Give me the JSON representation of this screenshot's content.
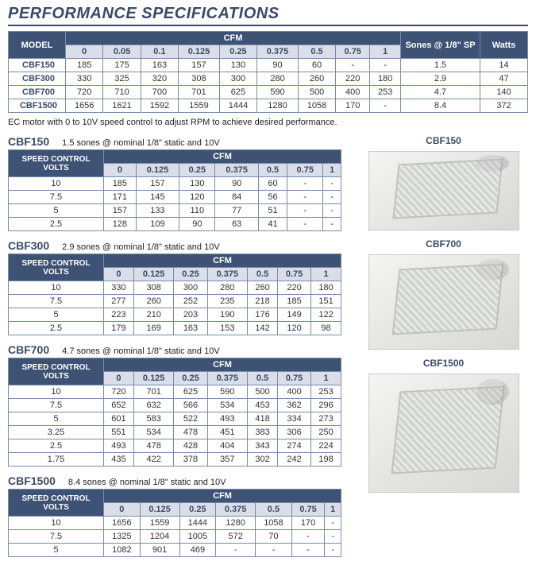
{
  "title": "PERFORMANCE SPECIFICATIONS",
  "note": "EC motor with 0 to 10V speed control to adjust RPM to achieve desired performance.",
  "main": {
    "headers": {
      "model": "MODEL",
      "cfm": "CFM",
      "sones": "Sones @ 1/8\" SP",
      "watts": "Watts"
    },
    "cfm_cols": [
      "0",
      "0.05",
      "0.1",
      "0.125",
      "0.25",
      "0.375",
      "0.5",
      "0.75",
      "1"
    ],
    "rows": [
      {
        "model": "CBF150",
        "vals": [
          "185",
          "175",
          "163",
          "157",
          "130",
          "90",
          "60",
          "-",
          "-"
        ],
        "sones": "1.5",
        "watts": "14"
      },
      {
        "model": "CBF300",
        "vals": [
          "330",
          "325",
          "320",
          "308",
          "300",
          "280",
          "260",
          "220",
          "180"
        ],
        "sones": "2.9",
        "watts": "47"
      },
      {
        "model": "CBF700",
        "vals": [
          "720",
          "710",
          "700",
          "701",
          "625",
          "590",
          "500",
          "400",
          "253"
        ],
        "sones": "4.7",
        "watts": "140"
      },
      {
        "model": "CBF1500",
        "vals": [
          "1656",
          "1621",
          "1592",
          "1559",
          "1444",
          "1280",
          "1058",
          "170",
          "-"
        ],
        "sones": "8.4",
        "watts": "372"
      }
    ]
  },
  "sub_cols": [
    "0",
    "0.125",
    "0.25",
    "0.375",
    "0.5",
    "0.75",
    "1"
  ],
  "sub_hdr": {
    "volts": "SPEED CONTROL VOLTS",
    "cfm": "CFM"
  },
  "subs": [
    {
      "model": "CBF150",
      "sub": "1.5 sones @ nominal 1/8\" static and 10V",
      "rows": [
        {
          "v": "10",
          "d": [
            "185",
            "157",
            "130",
            "90",
            "60",
            "-",
            "-"
          ]
        },
        {
          "v": "7.5",
          "d": [
            "171",
            "145",
            "120",
            "84",
            "56",
            "-",
            "-"
          ]
        },
        {
          "v": "5",
          "d": [
            "157",
            "133",
            "110",
            "77",
            "51",
            "-",
            "-"
          ]
        },
        {
          "v": "2.5",
          "d": [
            "128",
            "109",
            "90",
            "63",
            "41",
            "-",
            "-"
          ]
        }
      ]
    },
    {
      "model": "CBF300",
      "sub": "2.9 sones @ nominal 1/8\" static and 10V",
      "rows": [
        {
          "v": "10",
          "d": [
            "330",
            "308",
            "300",
            "280",
            "260",
            "220",
            "180"
          ]
        },
        {
          "v": "7.5",
          "d": [
            "277",
            "260",
            "252",
            "235",
            "218",
            "185",
            "151"
          ]
        },
        {
          "v": "5",
          "d": [
            "223",
            "210",
            "203",
            "190",
            "176",
            "149",
            "122"
          ]
        },
        {
          "v": "2.5",
          "d": [
            "179",
            "169",
            "163",
            "153",
            "142",
            "120",
            "98"
          ]
        }
      ]
    },
    {
      "model": "CBF700",
      "sub": "4.7 sones @ nominal 1/8\" static and 10V",
      "rows": [
        {
          "v": "10",
          "d": [
            "720",
            "701",
            "625",
            "590",
            "500",
            "400",
            "253"
          ]
        },
        {
          "v": "7.5",
          "d": [
            "652",
            "632",
            "566",
            "534",
            "453",
            "362",
            "296"
          ]
        },
        {
          "v": "5",
          "d": [
            "601",
            "583",
            "522",
            "493",
            "418",
            "334",
            "273"
          ]
        },
        {
          "v": "3.25",
          "d": [
            "551",
            "534",
            "478",
            "451",
            "383",
            "306",
            "250"
          ]
        },
        {
          "v": "2.5",
          "d": [
            "493",
            "478",
            "428",
            "404",
            "343",
            "274",
            "224"
          ]
        },
        {
          "v": "1.75",
          "d": [
            "435",
            "422",
            "378",
            "357",
            "302",
            "242",
            "198"
          ]
        }
      ]
    },
    {
      "model": "CBF1500",
      "sub": "8.4 sones @ nominal 1/8\" static and 10V",
      "rows": [
        {
          "v": "10",
          "d": [
            "1656",
            "1559",
            "1444",
            "1280",
            "1058",
            "170",
            "-"
          ]
        },
        {
          "v": "7.5",
          "d": [
            "1325",
            "1204",
            "1005",
            "572",
            "70",
            "-",
            "-"
          ]
        },
        {
          "v": "5",
          "d": [
            "1082",
            "901",
            "469",
            "-",
            "-",
            "-",
            "-"
          ]
        }
      ]
    }
  ],
  "images": [
    {
      "label": "CBF150",
      "cls": "img-150"
    },
    {
      "label": "CBF700",
      "cls": "img-700"
    },
    {
      "label": "CBF1500",
      "cls": "img-1500"
    }
  ],
  "colors": {
    "header_bg": "#3e5275",
    "subhdr_bg": "#d9dee8",
    "border": "#7a8aa8",
    "brand": "#3a4a66"
  }
}
